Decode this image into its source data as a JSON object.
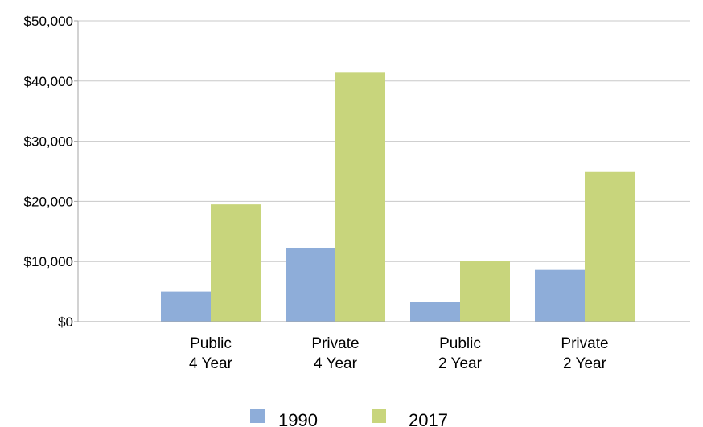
{
  "chart_data": {
    "type": "bar",
    "categories": [
      [
        "Public",
        "4 Year"
      ],
      [
        "Private",
        "4 Year"
      ],
      [
        "Public",
        "2 Year"
      ],
      [
        "Private",
        "2 Year"
      ]
    ],
    "series": [
      {
        "name": "1990",
        "color": "#8eadd9",
        "values": [
          5000,
          12300,
          3300,
          8600
        ]
      },
      {
        "name": "2017",
        "color": "#c8d57c",
        "values": [
          19500,
          41400,
          10100,
          24900
        ]
      }
    ],
    "y_ticks": [
      {
        "value": 0,
        "label": "$0"
      },
      {
        "value": 10000,
        "label": "$10,000"
      },
      {
        "value": 20000,
        "label": "$20,000"
      },
      {
        "value": 30000,
        "label": "$30,000"
      },
      {
        "value": 40000,
        "label": "$40,000"
      },
      {
        "value": 50000,
        "label": "$50,000"
      }
    ],
    "ylim": [
      0,
      50000
    ],
    "grid": true,
    "gridline_color": "#c8c8c8",
    "axis_color": "#a6a6a6",
    "legend_position": "bottom"
  }
}
